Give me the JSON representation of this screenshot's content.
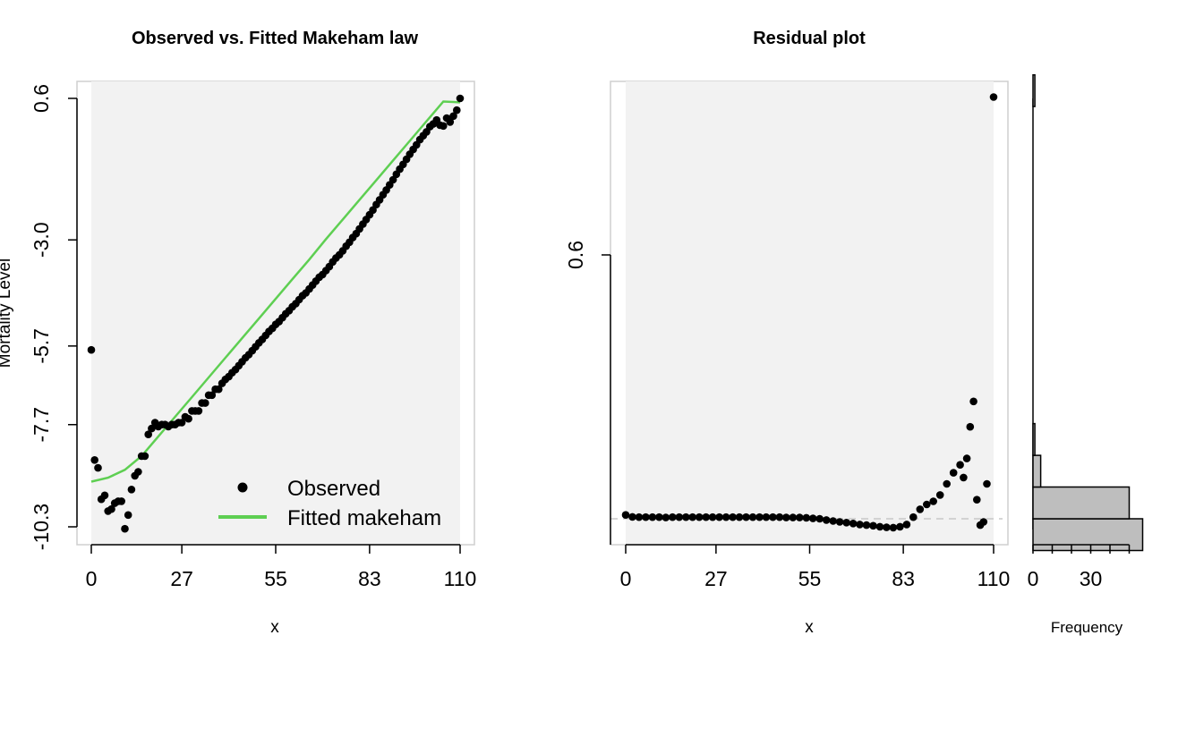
{
  "chart_data": [
    {
      "type": "scatter",
      "title": "Observed vs. Fitted Makeham law",
      "xlabel": "x",
      "ylabel": "Mortality Level",
      "xlim": [
        0,
        110
      ],
      "ylim": [
        -10.3,
        0.6
      ],
      "x_ticks": [
        "0",
        "27",
        "55",
        "83",
        "110"
      ],
      "y_ticks": [
        "0.6",
        "-3.0",
        "-5.7",
        "-7.7",
        "-10.3"
      ],
      "background": "#f2f2f2",
      "legend_position": "bottom-right",
      "legend": [
        "Observed",
        "Fitted makeham"
      ],
      "series": [
        {
          "name": "Observed",
          "color": "#000000",
          "x": [
            0,
            1,
            2,
            3,
            4,
            5,
            6,
            7,
            8,
            9,
            10,
            11,
            12,
            13,
            14,
            15,
            16,
            17,
            18,
            19,
            20,
            21,
            22,
            23,
            24,
            25,
            26,
            27,
            28,
            29,
            30,
            31,
            32,
            33,
            34,
            35,
            36,
            37,
            38,
            39,
            40,
            41,
            42,
            43,
            44,
            45,
            46,
            47,
            48,
            49,
            50,
            51,
            52,
            53,
            54,
            55,
            56,
            57,
            58,
            59,
            60,
            61,
            62,
            63,
            64,
            65,
            66,
            67,
            68,
            69,
            70,
            71,
            72,
            73,
            74,
            75,
            76,
            77,
            78,
            79,
            80,
            81,
            82,
            83,
            84,
            85,
            86,
            87,
            88,
            89,
            90,
            91,
            92,
            93,
            94,
            95,
            96,
            97,
            98,
            99,
            100,
            101,
            102,
            103,
            104,
            105,
            106,
            107,
            108,
            109,
            110
          ],
          "values": [
            -5.8,
            -8.6,
            -8.8,
            -9.6,
            -9.5,
            -9.9,
            -9.85,
            -9.7,
            -9.65,
            -9.65,
            -10.35,
            -10.0,
            -9.35,
            -9.0,
            -8.9,
            -8.5,
            -8.5,
            -7.95,
            -7.8,
            -7.65,
            -7.75,
            -7.7,
            -7.7,
            -7.75,
            -7.7,
            -7.7,
            -7.65,
            -7.65,
            -7.5,
            -7.55,
            -7.35,
            -7.35,
            -7.35,
            -7.15,
            -7.15,
            -6.95,
            -6.95,
            -6.8,
            -6.8,
            -6.65,
            -6.55,
            -6.48,
            -6.38,
            -6.3,
            -6.2,
            -6.1,
            -6.0,
            -5.92,
            -5.82,
            -5.72,
            -5.62,
            -5.53,
            -5.43,
            -5.33,
            -5.25,
            -5.15,
            -5.08,
            -4.98,
            -4.88,
            -4.8,
            -4.7,
            -4.62,
            -4.52,
            -4.42,
            -4.35,
            -4.25,
            -4.15,
            -4.05,
            -3.95,
            -3.88,
            -3.78,
            -3.68,
            -3.56,
            -3.46,
            -3.38,
            -3.28,
            -3.16,
            -3.06,
            -2.94,
            -2.84,
            -2.72,
            -2.6,
            -2.48,
            -2.36,
            -2.24,
            -2.1,
            -1.98,
            -1.85,
            -1.73,
            -1.6,
            -1.47,
            -1.33,
            -1.2,
            -1.08,
            -0.95,
            -0.82,
            -0.7,
            -0.58,
            -0.45,
            -0.35,
            -0.25,
            -0.12,
            -0.05,
            0.05,
            -0.08,
            -0.1,
            0.1,
            0.0,
            0.15,
            0.3,
            0.6
          ]
        },
        {
          "name": "Fitted makeham",
          "color": "#5ecf52",
          "x": [
            0,
            5,
            10,
            15,
            20,
            25,
            30,
            35,
            40,
            45,
            50,
            55,
            60,
            65,
            70,
            75,
            80,
            85,
            90,
            95,
            100,
            105,
            110
          ],
          "values": [
            -9.15,
            -9.05,
            -8.85,
            -8.5,
            -8.0,
            -7.5,
            -7.0,
            -6.5,
            -6.0,
            -5.5,
            -5.0,
            -4.5,
            -4.0,
            -3.5,
            -2.98,
            -2.48,
            -1.98,
            -1.48,
            -0.98,
            -0.48,
            0.02,
            0.52,
            0.02
          ]
        }
      ]
    },
    {
      "type": "scatter",
      "title": "Residual plot",
      "xlabel": "x",
      "ylabel": "",
      "xlim": [
        0,
        110
      ],
      "x_ticks": [
        "0",
        "27",
        "55",
        "83",
        "110"
      ],
      "y_ticks": [
        "0.6"
      ],
      "background": "#f2f2f2",
      "reference_line": "dashed",
      "series": [
        {
          "name": "",
          "color": "#000000",
          "x": [
            0,
            2,
            4,
            6,
            8,
            10,
            12,
            14,
            16,
            18,
            20,
            22,
            24,
            26,
            28,
            30,
            32,
            34,
            36,
            38,
            40,
            42,
            44,
            46,
            48,
            50,
            52,
            54,
            56,
            58,
            60,
            62,
            64,
            66,
            68,
            70,
            72,
            74,
            76,
            78,
            80,
            82,
            84,
            86,
            88,
            90,
            92,
            94,
            96,
            98,
            100,
            101,
            102,
            103,
            104,
            105,
            106,
            107,
            108,
            110
          ],
          "values": [
            0.012,
            0.006,
            0.005,
            0.005,
            0.005,
            0.005,
            0.004,
            0.005,
            0.005,
            0.005,
            0.005,
            0.005,
            0.005,
            0.005,
            0.005,
            0.005,
            0.005,
            0.005,
            0.005,
            0.005,
            0.005,
            0.005,
            0.005,
            0.005,
            0.004,
            0.004,
            0.004,
            0.003,
            0.001,
            0.0,
            -0.004,
            -0.007,
            -0.01,
            -0.012,
            -0.015,
            -0.018,
            -0.02,
            -0.022,
            -0.025,
            -0.027,
            -0.028,
            -0.025,
            -0.018,
            0.005,
            0.03,
            0.045,
            0.055,
            0.075,
            0.11,
            0.145,
            0.17,
            0.13,
            0.19,
            0.29,
            0.37,
            0.06,
            -0.02,
            -0.01,
            0.11,
            1.33
          ]
        }
      ]
    },
    {
      "type": "bar",
      "orientation": "horizontal",
      "xlabel": "Frequency",
      "x_ticks": [
        "0",
        "30"
      ],
      "fill": "#bebebe",
      "bins": [
        {
          "from": -0.1,
          "to": 0.0,
          "count": 57
        },
        {
          "from": 0.0,
          "to": 0.1,
          "count": 50
        },
        {
          "from": 0.1,
          "to": 0.2,
          "count": 4
        },
        {
          "from": 0.2,
          "to": 0.3,
          "count": 1
        },
        {
          "from": 1.3,
          "to": 1.4,
          "count": 1
        }
      ]
    }
  ]
}
